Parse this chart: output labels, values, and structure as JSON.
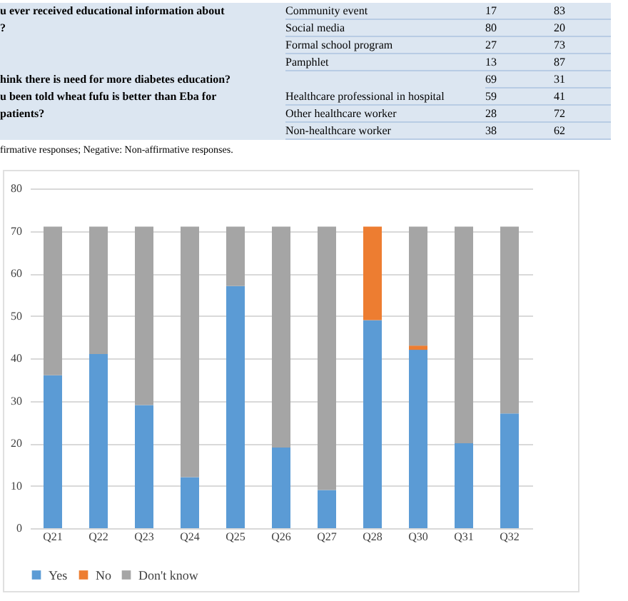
{
  "chart_data": {
    "type": "bar",
    "stacked": true,
    "categories": [
      "Q21",
      "Q22",
      "Q23",
      "Q24",
      "Q25",
      "Q26",
      "Q27",
      "Q28",
      "Q30",
      "Q31",
      "Q32"
    ],
    "series": [
      {
        "name": "Yes",
        "color": "#5b9bd5",
        "values": [
          36,
          41,
          29,
          12,
          57,
          19,
          9,
          49,
          42,
          20,
          27
        ]
      },
      {
        "name": "No",
        "color": "#ed7d31",
        "values": [
          0,
          0,
          0,
          0,
          0,
          0,
          0,
          22,
          1,
          0,
          0
        ]
      },
      {
        "name": "Don't know",
        "color": "#a5a5a5",
        "values": [
          35,
          30,
          42,
          59,
          14,
          52,
          62,
          0,
          28,
          51,
          44
        ]
      }
    ],
    "ylim": [
      0,
      80
    ],
    "yticks": [
      0,
      10,
      20,
      30,
      40,
      50,
      60,
      70,
      80
    ],
    "grid": "y",
    "legend": "bottom",
    "annotations": [
      "u ever received educational information about",
      "Community event",
      "17",
      "83",
      "?",
      "Social media",
      "80",
      "20",
      "Formal school program",
      "27",
      "73",
      "Pamphlet",
      "13",
      "87",
      "hink there is need for more diabetes education?",
      "69",
      "31",
      "u been told wheat fufu is better than Eba for",
      "Healthcare professional in hospital",
      "59",
      "41",
      "patients?",
      "Other healthcare worker",
      "28",
      "72",
      "Non-healthcare worker",
      "38",
      "62",
      "firmative responses; Negative: Non-affirmative responses."
    ]
  }
}
